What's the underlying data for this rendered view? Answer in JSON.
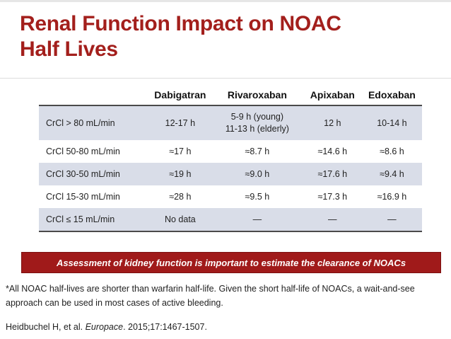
{
  "slide": {
    "title_line1": "Renal Function Impact on NOAC",
    "title_line2": "Half Lives",
    "title_color": "#a31f1c"
  },
  "table": {
    "headers": [
      "",
      "Dabigatran",
      "Rivaroxaban",
      "Apixaban",
      "Edoxaban"
    ],
    "rows": [
      {
        "label": "CrCl > 80 mL/min",
        "dabigatran": "12-17 h",
        "rivaroxaban_line1": "5-9 h (young)",
        "rivaroxaban_line2": "11-13 h (elderly)",
        "apixaban": "12 h",
        "edoxaban": "10-14 h"
      },
      {
        "label": "CrCl 50-80 mL/min",
        "dabigatran": "≈17 h",
        "rivaroxaban": "≈8.7 h",
        "apixaban": "≈14.6 h",
        "edoxaban": "≈8.6 h"
      },
      {
        "label": "CrCl 30-50 mL/min",
        "dabigatran": "≈19 h",
        "rivaroxaban": "≈9.0 h",
        "apixaban": "≈17.6 h",
        "edoxaban": "≈9.4 h"
      },
      {
        "label": "CrCl 15-30 mL/min",
        "dabigatran": "≈28 h",
        "rivaroxaban": "≈9.5 h",
        "apixaban": "≈17.3 h",
        "edoxaban": "≈16.9 h"
      },
      {
        "label": "CrCl ≤ 15 mL/min",
        "dabigatran": "No data",
        "rivaroxaban": "—",
        "apixaban": "—",
        "edoxaban": "—"
      }
    ],
    "shade_color": "#d9dde8"
  },
  "banner": {
    "text": "Assessment of kidney function is important to estimate the clearance of NOACs",
    "color": "#a01a1a"
  },
  "footnote": "*All NOAC half-lives are shorter than warfarin half-life. Given the short half-life of NOACs, a wait-and-see approach can be used in most cases of active bleeding.",
  "citation": {
    "authors": "Heidbuchel H, et al. ",
    "journal": "Europace",
    "details": ". 2015;17:1467-1507."
  }
}
